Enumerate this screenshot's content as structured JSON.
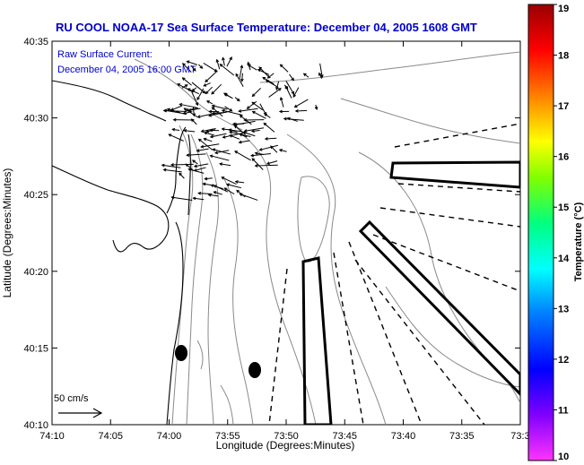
{
  "title": "RU COOL   NOAA-17  Sea Surface Temperature:  December 04, 2005 1608 GMT",
  "legend": {
    "line1": "Raw Surface Current:",
    "line2": "December 04, 2005 16:00 GMT"
  },
  "scale_label": "50 cm/s",
  "axes": {
    "xlabel": "Longitude (Degrees:Minutes)",
    "ylabel": "Latitude (Degrees:Minutes)",
    "x_ticks": [
      "74:10",
      "74:05",
      "74:00",
      "73:55",
      "73:50",
      "73:45",
      "73:40",
      "73:35",
      "73:3"
    ],
    "y_ticks": [
      "40:35",
      "40:30",
      "40:25",
      "40:20",
      "40:15",
      "40:10"
    ]
  },
  "colorbar": {
    "label": "Temperature (°C)",
    "ticks": [
      "19",
      "18",
      "17",
      "16",
      "15",
      "14",
      "13",
      "12",
      "11",
      "10"
    ],
    "range": [
      10,
      19
    ],
    "colors": [
      "#ff33ff",
      "#8000ff",
      "#0000ff",
      "#0088ff",
      "#00ffff",
      "#00ff80",
      "#80ff00",
      "#ffff00",
      "#ff8000",
      "#ff0000",
      "#990000"
    ]
  },
  "markers": [
    {
      "name": "marker-left",
      "lon": "73:59",
      "lat": "40:14.5"
    },
    {
      "name": "marker-right",
      "lon": "73:53",
      "lat": "40:13"
    }
  ]
}
